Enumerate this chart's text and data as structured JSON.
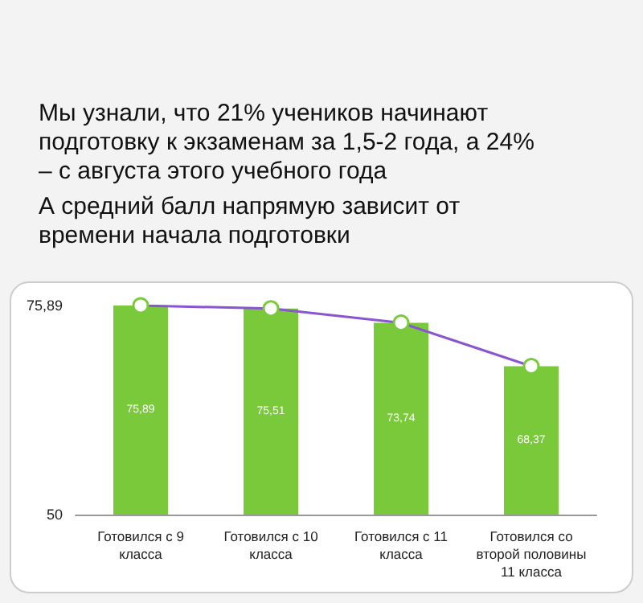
{
  "chart_data": {
    "type": "bar",
    "title": "Мы узнали, что 21% учеников начинают подготовку к экзаменам за 1,5-2 года, а 24% – с августа этого учебного года",
    "subtitle": "А средний балл напрямую зависит от времени начала подготовки",
    "categories": [
      "Готовился с 9 класса",
      "Готовился с 10 класса",
      "Готовился с 11 класса",
      "Готовился со второй половины 11 класса"
    ],
    "series": [
      {
        "color": "#79c93a",
        "values": [
          75.89,
          75.51,
          73.74,
          68.37
        ],
        "value_labels": [
          "75,89",
          "75,51",
          "73,74",
          "68,37"
        ]
      },
      {
        "type": "line",
        "color": "#8a55d0",
        "values": [
          75.89,
          75.51,
          73.74,
          68.37
        ],
        "marker": "circle"
      }
    ],
    "ylim": [
      50,
      75.89
    ],
    "yticks": [
      50,
      {
        "value": 75.89,
        "label": "75,89"
      }
    ],
    "grid": false
  }
}
